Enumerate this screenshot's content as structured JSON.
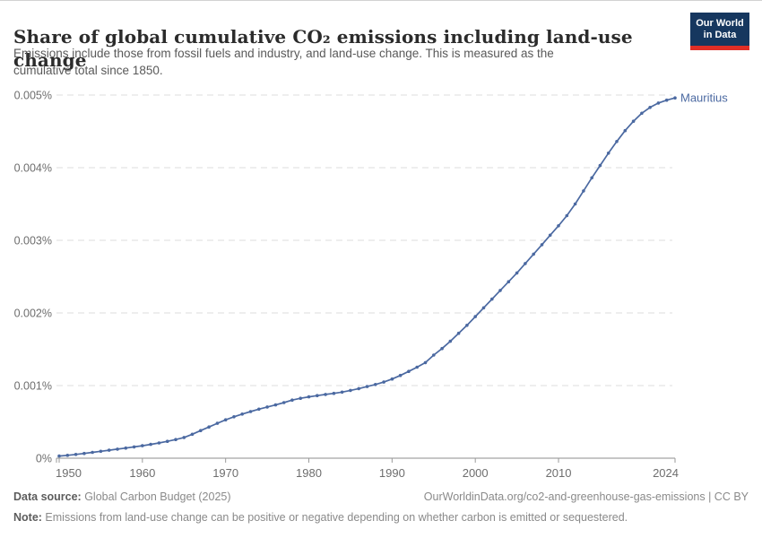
{
  "header": {
    "subtitle_line1": "Emissions include those from fossil fuels and industry, and land-use change. This is measured as the",
    "subtitle_line2": "cumulative total since 1850.",
    "logo": {
      "line1": "Our World",
      "line2": "in Data",
      "bg_color": "#16375f",
      "accent_color": "#e02e26"
    }
  },
  "chart_data": {
    "type": "line",
    "title": "Share of global cumulative CO₂ emissions including land-use change",
    "series_name": "Mauritius",
    "entity_label": "Mauritius",
    "unit": "%",
    "line_color": "#4b69a1",
    "grid": true,
    "legend_position": "end-of-line-label",
    "xlim": [
      1950,
      2024
    ],
    "ylim": [
      0,
      0.005
    ],
    "x": [
      1950,
      1951,
      1952,
      1953,
      1954,
      1955,
      1956,
      1957,
      1958,
      1959,
      1960,
      1961,
      1962,
      1963,
      1964,
      1965,
      1966,
      1967,
      1968,
      1969,
      1970,
      1971,
      1972,
      1973,
      1974,
      1975,
      1976,
      1977,
      1978,
      1979,
      1980,
      1981,
      1982,
      1983,
      1984,
      1985,
      1986,
      1987,
      1988,
      1989,
      1990,
      1991,
      1992,
      1993,
      1994,
      1995,
      1996,
      1997,
      1998,
      1999,
      2000,
      2001,
      2002,
      2003,
      2004,
      2005,
      2006,
      2007,
      2008,
      2009,
      2010,
      2011,
      2012,
      2013,
      2014,
      2015,
      2016,
      2017,
      2018,
      2019,
      2020,
      2021,
      2022,
      2023,
      2024
    ],
    "values": [
      3e-05,
      4e-05,
      5.2e-05,
      6.5e-05,
      8e-05,
      9.5e-05,
      0.00011,
      0.000125,
      0.00014,
      0.000155,
      0.000172,
      0.00019,
      0.00021,
      0.000232,
      0.000257,
      0.000285,
      0.00033,
      0.00038,
      0.00043,
      0.00048,
      0.000528,
      0.00057,
      0.000608,
      0.000642,
      0.000675,
      0.000705,
      0.000733,
      0.000765,
      0.0008,
      0.000825,
      0.000845,
      0.000862,
      0.000878,
      0.000893,
      0.00091,
      0.000933,
      0.000958,
      0.000986,
      0.001015,
      0.001048,
      0.00109,
      0.00114,
      0.001195,
      0.001253,
      0.001316,
      0.00142,
      0.00151,
      0.00161,
      0.00172,
      0.00183,
      0.00195,
      0.00207,
      0.00219,
      0.00231,
      0.00243,
      0.00255,
      0.00268,
      0.00281,
      0.00294,
      0.00307,
      0.0032,
      0.00334,
      0.0035,
      0.00368,
      0.00386,
      0.00403,
      0.0042,
      0.00436,
      0.00451,
      0.00464,
      0.00475,
      0.00483,
      0.00489,
      0.00493,
      0.00496
    ],
    "y_ticks": [
      {
        "value": 0,
        "label": "0%"
      },
      {
        "value": 0.001,
        "label": "0.001%"
      },
      {
        "value": 0.002,
        "label": "0.002%"
      },
      {
        "value": 0.003,
        "label": "0.003%"
      },
      {
        "value": 0.004,
        "label": "0.004%"
      },
      {
        "value": 0.005,
        "label": "0.005%"
      }
    ],
    "x_ticks": [
      {
        "value": 1950,
        "label": "1950"
      },
      {
        "value": 1960,
        "label": "1960"
      },
      {
        "value": 1970,
        "label": "1970"
      },
      {
        "value": 1980,
        "label": "1980"
      },
      {
        "value": 1990,
        "label": "1990"
      },
      {
        "value": 2000,
        "label": "2000"
      },
      {
        "value": 2010,
        "label": "2010"
      },
      {
        "value": 2024,
        "label": "2024"
      }
    ]
  },
  "footer": {
    "source_label": "Data source:",
    "source_text": " Global Carbon Budget (2025)",
    "link_text": "OurWorldinData.org/co2-and-greenhouse-gas-emissions | CC BY",
    "note_label": "Note:",
    "note_text": " Emissions from land-use change can be positive or negative depending on whether carbon is emitted or sequestered."
  }
}
